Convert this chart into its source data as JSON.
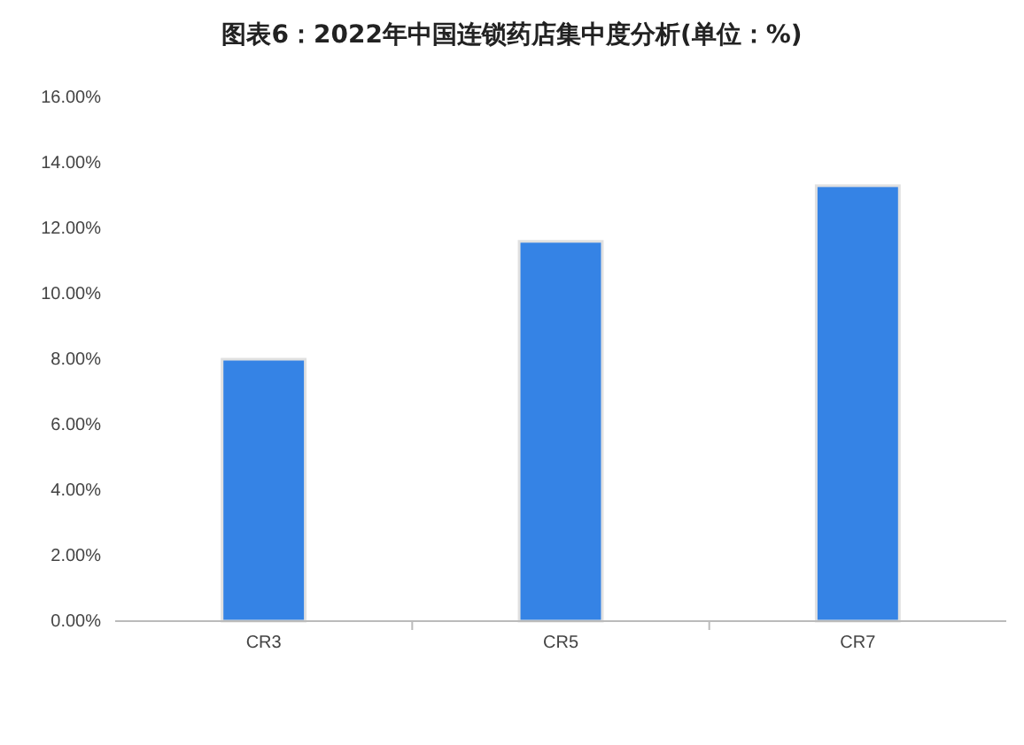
{
  "chart_data": {
    "type": "bar",
    "title": "图表6：2022年中国连锁药店集中度分析(单位：%)",
    "categories": [
      "CR3",
      "CR5",
      "CR7"
    ],
    "values": [
      8.0,
      11.6,
      13.3
    ],
    "color": "#3583e5",
    "ylim": [
      0,
      16
    ],
    "yticks": [
      {
        "value": 0,
        "label": "0.00%"
      },
      {
        "value": 2,
        "label": "2.00%"
      },
      {
        "value": 4,
        "label": "4.00%"
      },
      {
        "value": 6,
        "label": "6.00%"
      },
      {
        "value": 8,
        "label": "8.00%"
      },
      {
        "value": 10,
        "label": "10.00%"
      },
      {
        "value": 12,
        "label": "12.00%"
      },
      {
        "value": 14,
        "label": "14.00%"
      },
      {
        "value": 16,
        "label": "16.00%"
      }
    ],
    "grid": false
  }
}
